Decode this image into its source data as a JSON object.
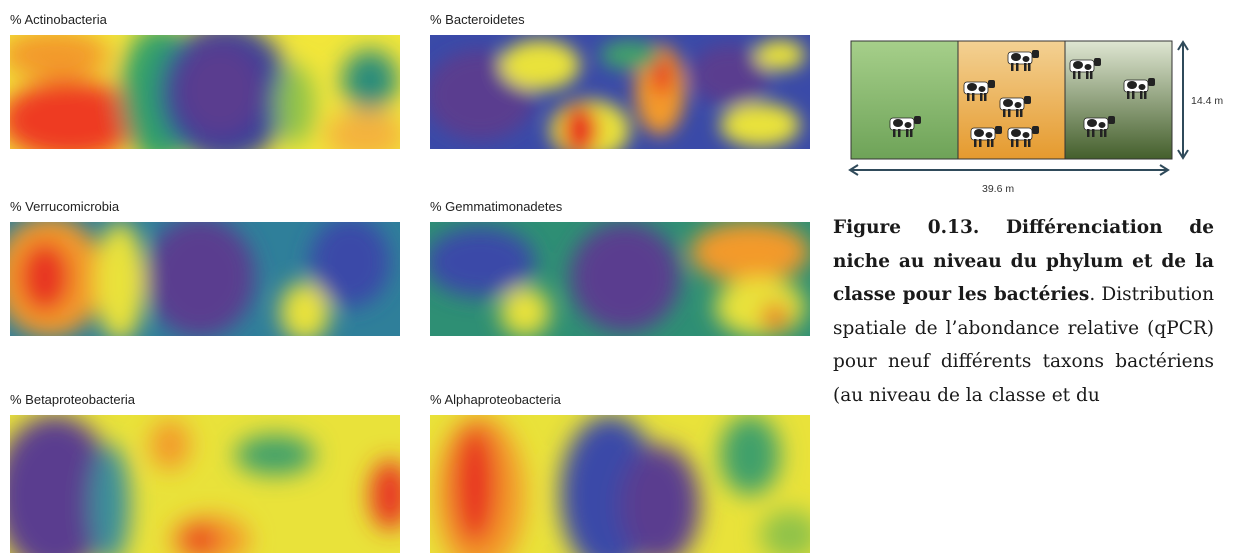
{
  "panels": [
    {
      "title": "% Actinobacteria"
    },
    {
      "title": "% Bacteroidetes"
    },
    {
      "title": "% Verrucomicrobia"
    },
    {
      "title": "% Gemmatimonadetes"
    },
    {
      "title": "% Betaproteobacteria"
    },
    {
      "title": "% Alphaproteobacteria"
    }
  ],
  "diagram": {
    "height_label": "14.4 m",
    "width_label": "39.6 m",
    "zone_colors": [
      "#8ab870",
      "#e9a93e",
      "#54703a"
    ]
  },
  "caption": {
    "bold": "Figure 0.13. Différenciation de niche au niveau du phylum et de la classe pour les bactéries",
    "normal": ". Distribution spatiale de l’abondance relative (qPCR) pour neuf différents taxons bactériens (au niveau de la classe et du"
  }
}
